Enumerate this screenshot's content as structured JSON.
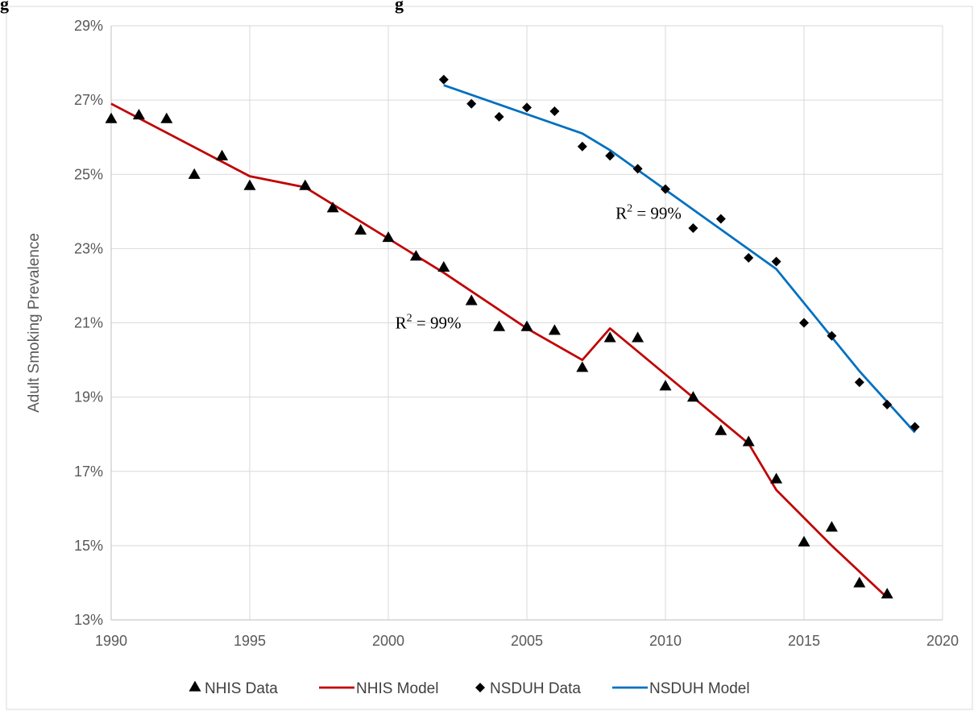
{
  "header": {
    "title_left": "g",
    "title_right": "g"
  },
  "chart_data": {
    "type": "scatter",
    "xlabel": "",
    "ylabel": "Adult Smoking Prevalence",
    "xlim": [
      1990,
      2020
    ],
    "ylim": [
      13,
      29
    ],
    "x_ticks": [
      "1990",
      "1995",
      "2000",
      "2005",
      "2010",
      "2015",
      "2020"
    ],
    "y_ticks": [
      "13%",
      "15%",
      "17%",
      "19%",
      "21%",
      "23%",
      "25%",
      "27%",
      "29%"
    ],
    "grid": "vertical-and-horizontal",
    "legend_position": "bottom",
    "series": [
      {
        "name": "NHIS Data",
        "kind": "points",
        "marker": "triangle",
        "color": "#000000",
        "x": [
          1990,
          1991,
          1992,
          1993,
          1994,
          1995,
          1997,
          1998,
          1999,
          2000,
          2001,
          2002,
          2003,
          2004,
          2005,
          2006,
          2007,
          2008,
          2009,
          2010,
          2011,
          2012,
          2013,
          2014,
          2015,
          2016,
          2017,
          2018
        ],
        "y": [
          26.5,
          26.6,
          26.5,
          25.0,
          25.5,
          24.7,
          24.7,
          24.1,
          23.5,
          23.3,
          22.8,
          22.5,
          21.6,
          20.9,
          20.9,
          20.8,
          19.8,
          20.6,
          20.6,
          19.3,
          19.0,
          18.1,
          17.8,
          16.8,
          15.1,
          15.5,
          14.0,
          13.7
        ]
      },
      {
        "name": "NHIS Model",
        "kind": "line",
        "color": "#c00000",
        "x": [
          1990,
          1995,
          1997,
          2002,
          2005,
          2007,
          2008,
          2013,
          2014,
          2016,
          2018
        ],
        "y": [
          26.9,
          24.95,
          24.65,
          22.35,
          20.85,
          20.0,
          20.85,
          17.75,
          16.5,
          15.0,
          13.6
        ]
      },
      {
        "name": "NSDUH Data",
        "kind": "points",
        "marker": "diamond",
        "color": "#000000",
        "x": [
          2002,
          2003,
          2004,
          2005,
          2006,
          2007,
          2008,
          2009,
          2010,
          2011,
          2012,
          2013,
          2014,
          2015,
          2016,
          2017,
          2018,
          2019
        ],
        "y": [
          27.55,
          26.9,
          26.55,
          26.8,
          26.7,
          25.75,
          25.5,
          25.15,
          24.6,
          23.55,
          23.8,
          22.75,
          22.65,
          21.0,
          20.65,
          19.4,
          18.8,
          18.2
        ]
      },
      {
        "name": "NSDUH Model",
        "kind": "line",
        "color": "#0070c0",
        "x": [
          2002,
          2007,
          2008,
          2014,
          2017,
          2019
        ],
        "y": [
          27.4,
          26.1,
          25.65,
          22.45,
          19.7,
          18.05
        ]
      }
    ],
    "annotations": [
      {
        "base": "R",
        "sup": "2",
        "rest": " = 99%",
        "x": 2000.25,
        "y": 20.85
      },
      {
        "base": "R",
        "sup": "2",
        "rest": " = 99%",
        "x": 2008.2,
        "y": 23.8
      }
    ]
  }
}
